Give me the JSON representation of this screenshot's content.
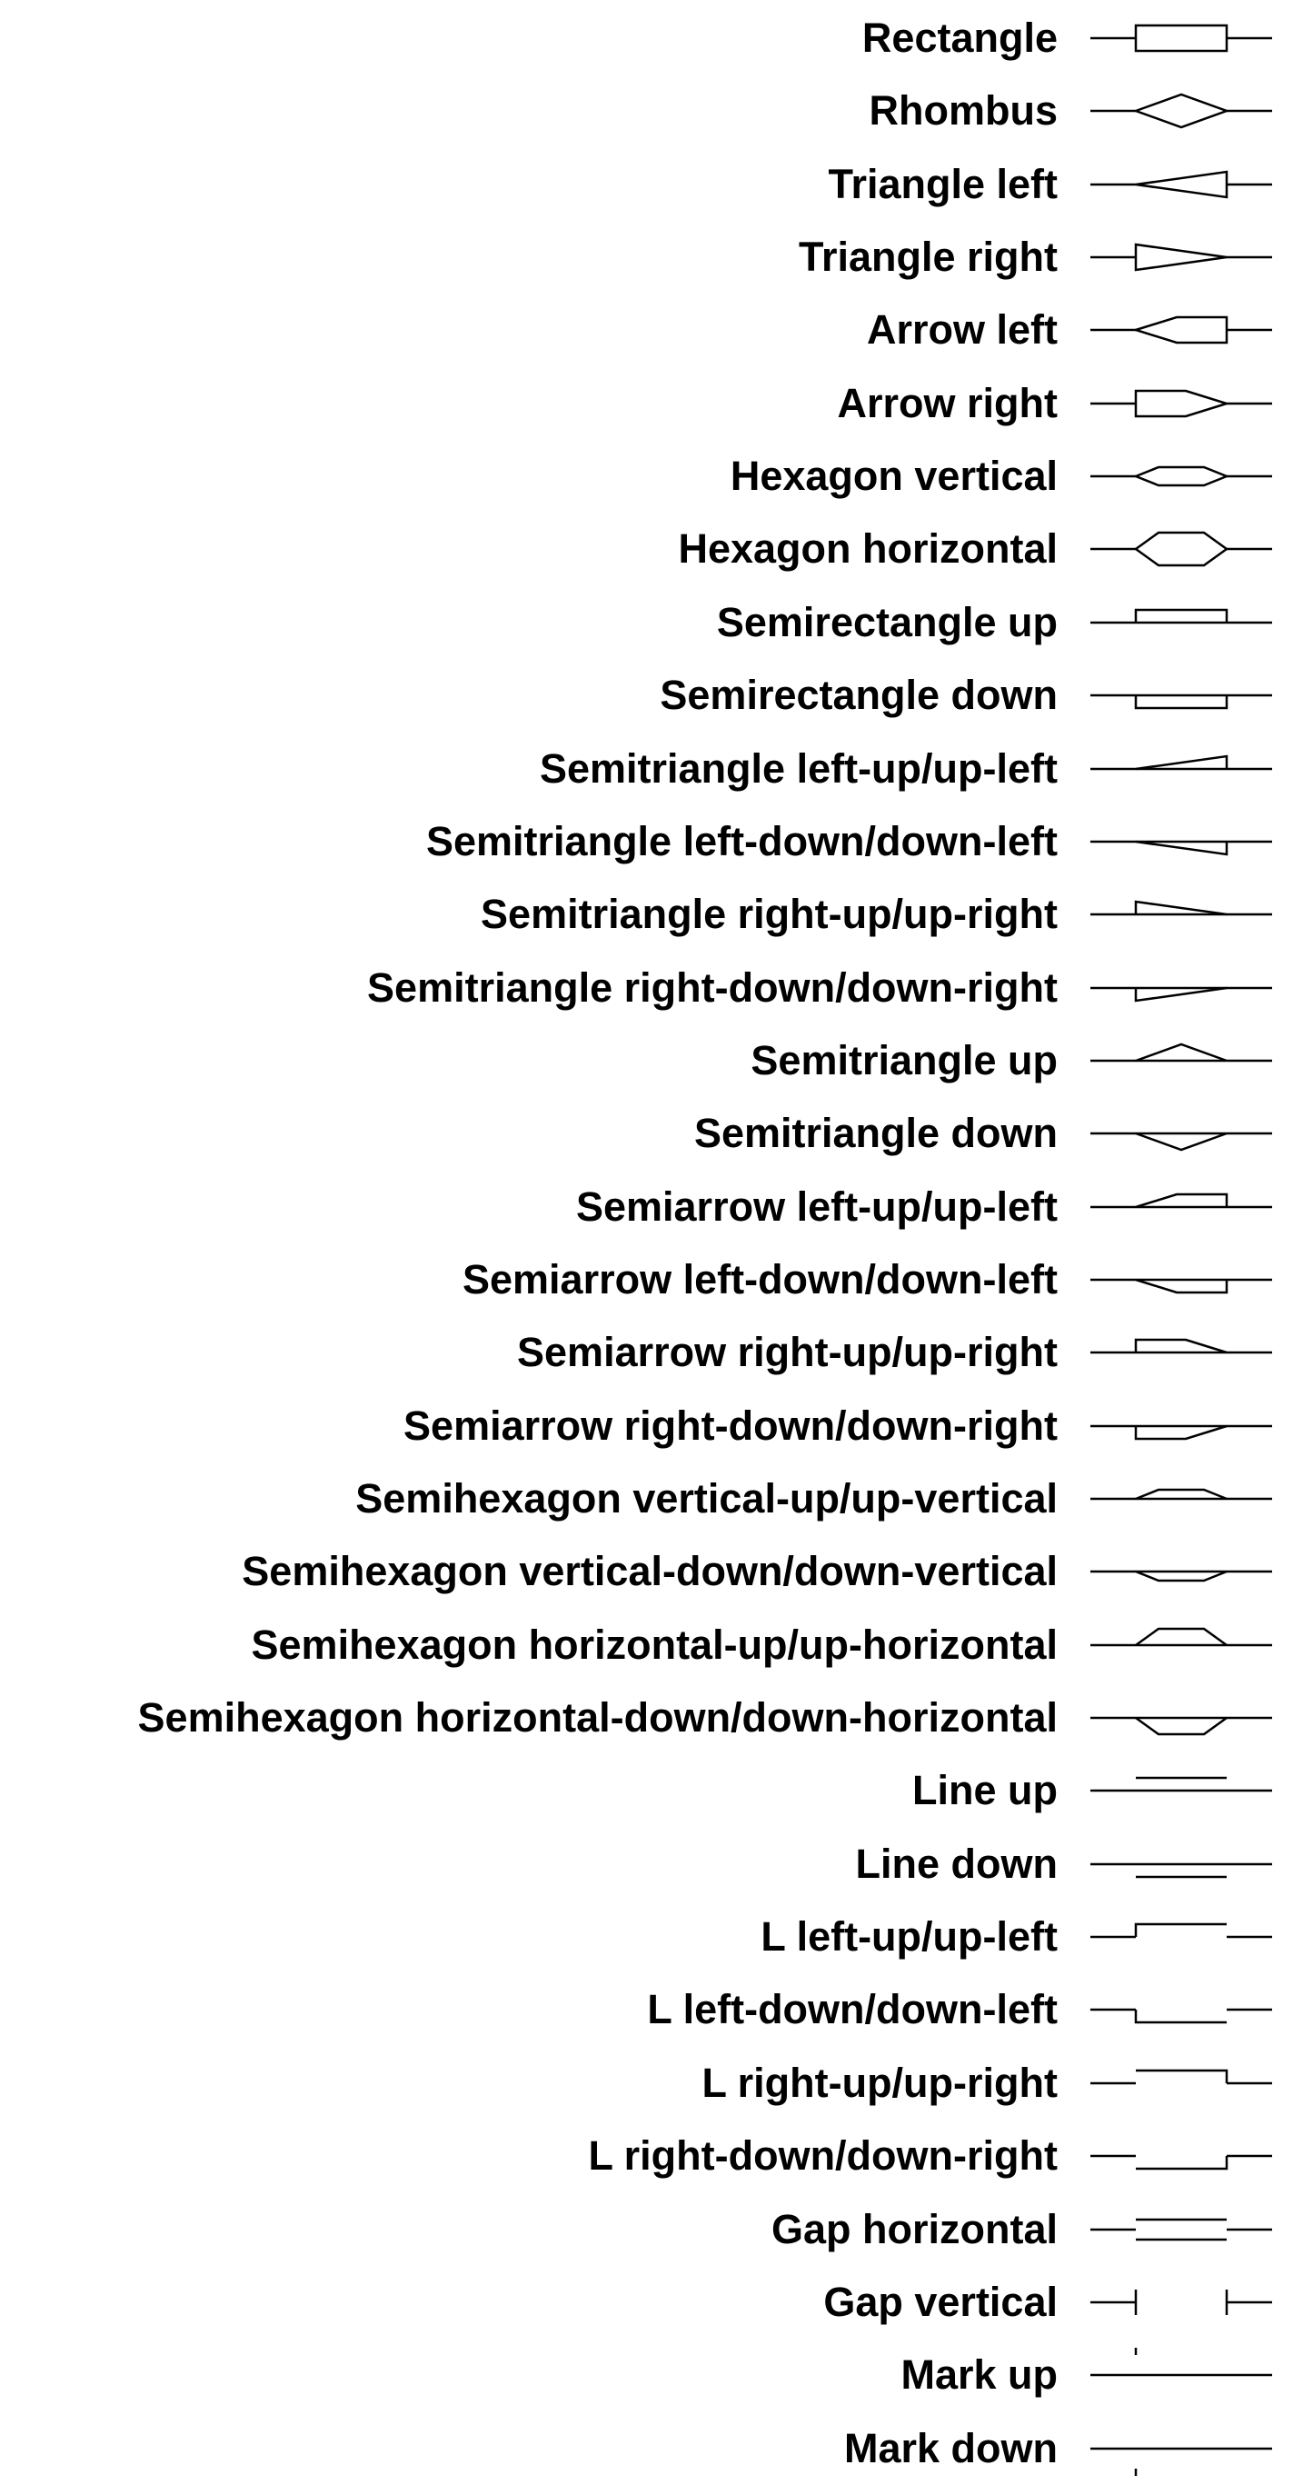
{
  "symbols": [
    {
      "label": "Rectangle",
      "icon": "rectangle-icon"
    },
    {
      "label": "Rhombus",
      "icon": "rhombus-icon"
    },
    {
      "label": "Triangle left",
      "icon": "triangle-left-icon"
    },
    {
      "label": "Triangle right",
      "icon": "triangle-right-icon"
    },
    {
      "label": "Arrow left",
      "icon": "arrow-left-icon"
    },
    {
      "label": "Arrow right",
      "icon": "arrow-right-icon"
    },
    {
      "label": "Hexagon vertical",
      "icon": "hexagon-vertical-icon"
    },
    {
      "label": "Hexagon horizontal",
      "icon": "hexagon-horizontal-icon"
    },
    {
      "label": "Semirectangle up",
      "icon": "semirectangle-up-icon"
    },
    {
      "label": "Semirectangle down",
      "icon": "semirectangle-down-icon"
    },
    {
      "label": "Semitriangle left-up/up-left",
      "icon": "semitriangle-left-up-icon"
    },
    {
      "label": "Semitriangle left-down/down-left",
      "icon": "semitriangle-left-down-icon"
    },
    {
      "label": "Semitriangle right-up/up-right",
      "icon": "semitriangle-right-up-icon"
    },
    {
      "label": "Semitriangle right-down/down-right",
      "icon": "semitriangle-right-down-icon"
    },
    {
      "label": "Semitriangle up",
      "icon": "semitriangle-up-icon"
    },
    {
      "label": "Semitriangle down",
      "icon": "semitriangle-down-icon"
    },
    {
      "label": "Semiarrow left-up/up-left",
      "icon": "semiarrow-left-up-icon"
    },
    {
      "label": "Semiarrow left-down/down-left",
      "icon": "semiarrow-left-down-icon"
    },
    {
      "label": "Semiarrow right-up/up-right",
      "icon": "semiarrow-right-up-icon"
    },
    {
      "label": "Semiarrow right-down/down-right",
      "icon": "semiarrow-right-down-icon"
    },
    {
      "label": "Semihexagon vertical-up/up-vertical",
      "icon": "semihexagon-vertical-up-icon"
    },
    {
      "label": "Semihexagon vertical-down/down-vertical",
      "icon": "semihexagon-vertical-down-icon"
    },
    {
      "label": "Semihexagon horizontal-up/up-horizontal",
      "icon": "semihexagon-horizontal-up-icon"
    },
    {
      "label": "Semihexagon horizontal-down/down-horizontal",
      "icon": "semihexagon-horizontal-down-icon"
    },
    {
      "label": "Line up",
      "icon": "line-up-icon"
    },
    {
      "label": "Line down",
      "icon": "line-down-icon"
    },
    {
      "label": "L left-up/up-left",
      "icon": "l-left-up-icon"
    },
    {
      "label": "L left-down/down-left",
      "icon": "l-left-down-icon"
    },
    {
      "label": "L right-up/up-right",
      "icon": "l-right-up-icon"
    },
    {
      "label": "L right-down/down-right",
      "icon": "l-right-down-icon"
    },
    {
      "label": "Gap horizontal",
      "icon": "gap-horizontal-icon"
    },
    {
      "label": "Gap vertical",
      "icon": "gap-vertical-icon"
    },
    {
      "label": "Mark up",
      "icon": "mark-up-icon"
    },
    {
      "label": "Mark down",
      "icon": "mark-down-icon"
    }
  ]
}
